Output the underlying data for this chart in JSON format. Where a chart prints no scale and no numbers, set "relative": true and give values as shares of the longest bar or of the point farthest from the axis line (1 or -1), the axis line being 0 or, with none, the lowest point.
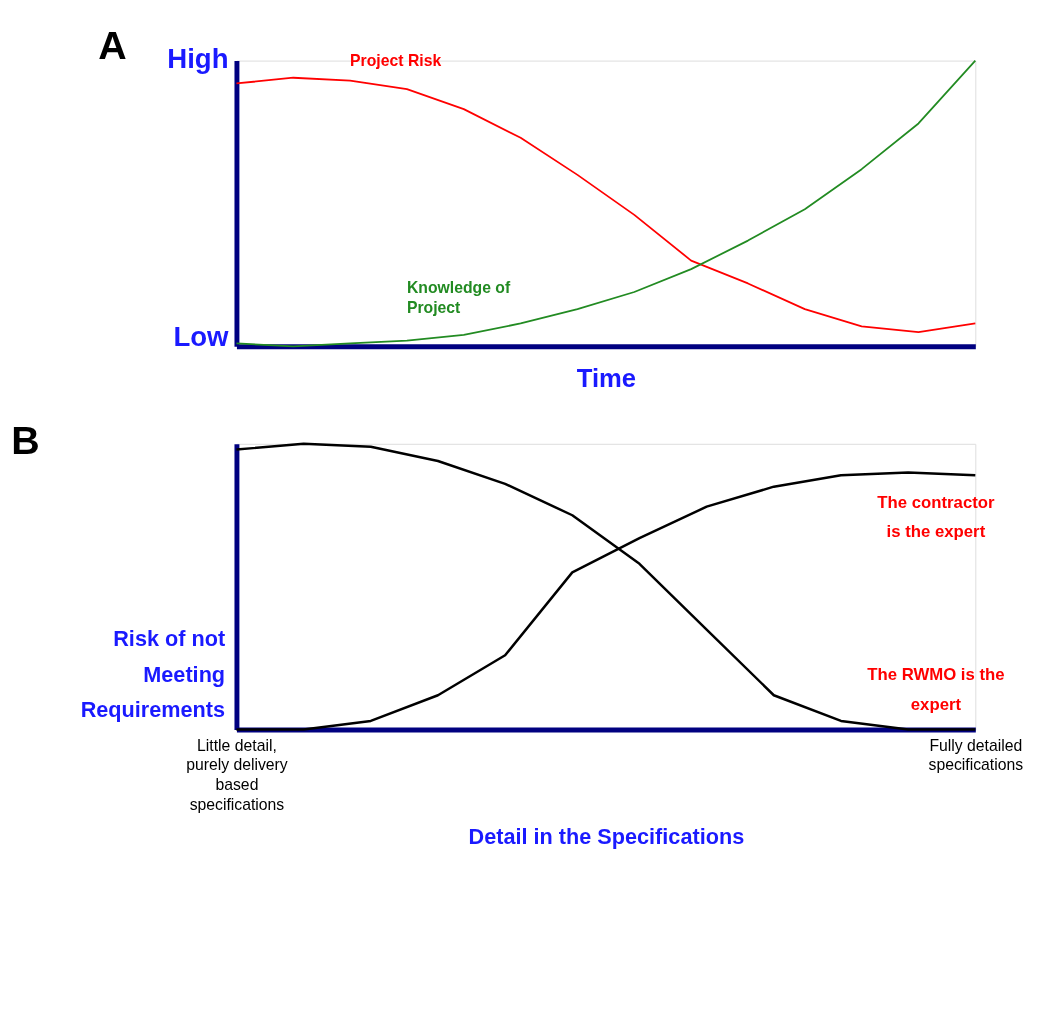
{
  "chart_data": [
    {
      "type": "line",
      "title": "A",
      "xlabel": "Time",
      "relative": true,
      "legend": false,
      "grid": false,
      "categories": [
        null,
        null,
        null,
        null,
        null,
        null,
        null,
        null,
        null,
        null,
        null,
        null,
        null,
        null
      ],
      "series": [
        {
          "name": "Project Risk",
          "color": "#ff0000",
          "values": [
            0.92,
            0.94,
            0.93,
            0.9,
            0.83,
            0.73,
            0.6,
            0.46,
            0.3,
            0.22,
            0.13,
            0.07,
            0.05,
            0.08
          ]
        },
        {
          "name": "Knowledge of Project",
          "color": "#228b22",
          "values": [
            0.01,
            0.0,
            0.01,
            0.02,
            0.04,
            0.08,
            0.13,
            0.19,
            0.27,
            0.37,
            0.48,
            0.62,
            0.78,
            1.0
          ]
        }
      ],
      "annotations": [
        "High",
        "Low"
      ]
    },
    {
      "type": "line",
      "title": "B",
      "xlabel": "Detail in the Specifications",
      "ylabel": "Risk of not Meeting Requirements",
      "relative": true,
      "legend": false,
      "grid": false,
      "categories": [
        "Little detail, purely delivery based specifications",
        null,
        null,
        null,
        null,
        null,
        null,
        null,
        null,
        null,
        null,
        "Fully detailed specifications"
      ],
      "series": [
        {
          "color": "#000000",
          "values": [
            0.98,
            1.0,
            0.99,
            0.94,
            0.86,
            0.75,
            0.58,
            0.35,
            0.12,
            0.03,
            0.0,
            0.0
          ]
        },
        {
          "color": "#000000",
          "values": [
            0.0,
            0.0,
            0.03,
            0.12,
            0.26,
            0.55,
            0.67,
            0.78,
            0.85,
            0.89,
            0.9,
            0.89
          ]
        }
      ],
      "annotations": [
        "The contractor is the expert",
        "The RWMO is the expert"
      ]
    }
  ]
}
